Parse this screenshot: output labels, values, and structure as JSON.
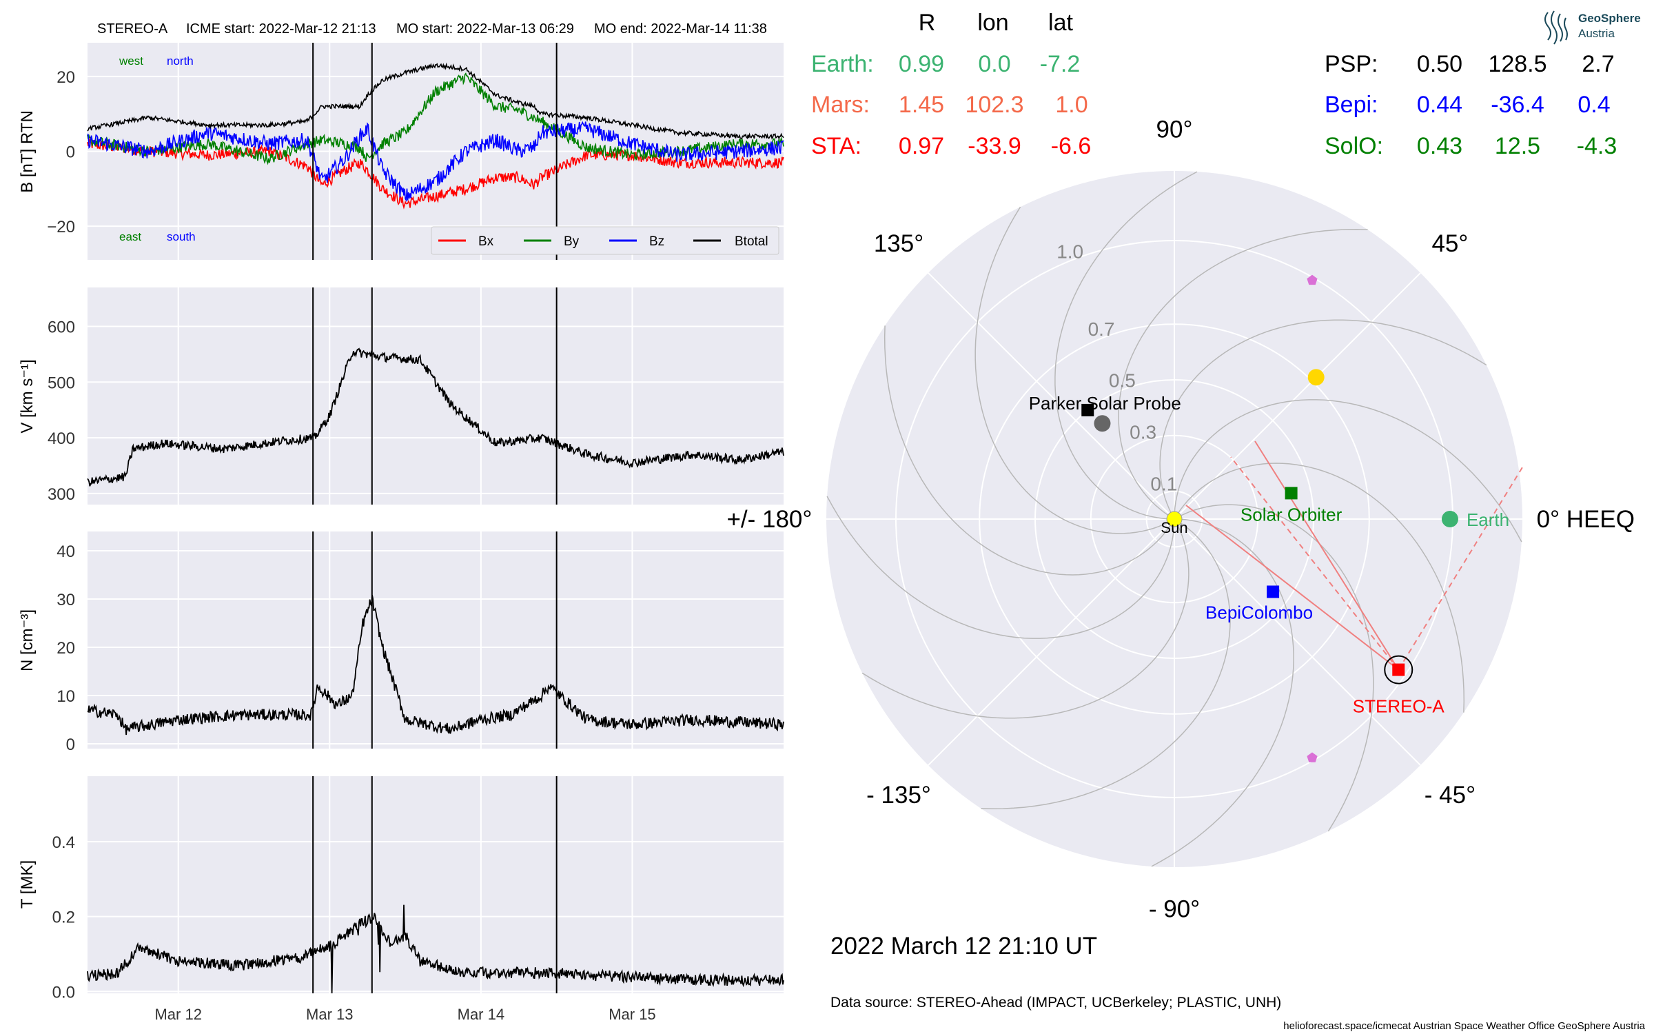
{
  "header": {
    "spacecraft": "STEREO-A",
    "icme_start": "ICME start: 2022-Mar-12 21:13",
    "mo_start": "MO start: 2022-Mar-13 06:29",
    "mo_end": "MO end: 2022-Mar-14 11:38"
  },
  "logo": {
    "line1": "GeoSphere",
    "line2": "Austria"
  },
  "colors": {
    "panel_bg": "#eaeaf2",
    "grid": "#ffffff",
    "bx": "#ff0000",
    "by": "#008000",
    "bz": "#0000ff",
    "btotal": "#000000",
    "earth": "#3cb371",
    "mars": "#f4694a",
    "sta": "#ff0000",
    "psp": "#000000",
    "bepi": "#0000ff",
    "solo": "#008000",
    "sun": "#ffff00",
    "planet_yellow": "#ffd700",
    "pink_marker": "#da70d6"
  },
  "positions_table": {
    "headers": [
      "R",
      "lon",
      "lat"
    ],
    "left": [
      {
        "name": "Earth:",
        "R": "0.99",
        "lon": "0.0",
        "lat": "-7.2",
        "color": "#3cb371"
      },
      {
        "name": "Mars:",
        "R": "1.45",
        "lon": "102.3",
        "lat": "1.0",
        "color": "#f4694a"
      },
      {
        "name": "STA:",
        "R": "0.97",
        "lon": "-33.9",
        "lat": "-6.6",
        "color": "#ff0000"
      }
    ],
    "right": [
      {
        "name": "PSP:",
        "R": "0.50",
        "lon": "128.5",
        "lat": "2.7",
        "color": "#000000"
      },
      {
        "name": "Bepi:",
        "R": "0.44",
        "lon": "-36.4",
        "lat": "0.4",
        "color": "#0000ff"
      },
      {
        "name": "SolO:",
        "R": "0.43",
        "lon": "12.5",
        "lat": "-4.3",
        "color": "#008000"
      }
    ]
  },
  "date_label": "2022 March 12  21:10 UT",
  "data_source": "Data source: STEREO-Ahead (IMPACT, UCBerkeley; PLASTIC, UNH)",
  "footer": "helioforecast.space/icmecat   Austrian Space Weather Office   GeoSphere Austria",
  "chart_data": [
    {
      "type": "line",
      "ylabel": "B [nT] RTN",
      "ylim": [
        -29,
        29
      ],
      "yticks": [
        -20,
        0,
        20
      ],
      "yticklabels": [
        "−20",
        "0",
        "20"
      ],
      "direction_labels": {
        "west": "west",
        "north": "north",
        "east": "east",
        "south": "south"
      },
      "legend": [
        "Bx",
        "By",
        "Bz",
        "Btotal"
      ],
      "legend_position": "lower-right",
      "grid": true,
      "x_days": [
        0,
        0.4,
        0.8,
        1.2,
        1.45,
        1.55,
        1.7,
        1.8,
        1.85,
        1.95,
        2.1,
        2.3,
        2.5,
        2.7,
        2.85,
        2.95,
        3.0,
        3.3,
        3.6,
        3.9,
        4.3,
        4.6
      ],
      "series": [
        {
          "name": "Bx",
          "values": [
            2,
            0,
            -1,
            0,
            -4,
            -9,
            -5,
            -3,
            -5,
            -10,
            -14,
            -12,
            -10,
            -7,
            -7,
            -9,
            -7,
            -1,
            -1,
            -3,
            -3,
            -3
          ]
        },
        {
          "name": "By",
          "values": [
            3,
            0,
            2,
            -2,
            2,
            3,
            2,
            1,
            -2,
            2,
            5,
            16,
            20,
            12,
            11,
            9,
            8,
            1,
            -1,
            0,
            2,
            2
          ]
        },
        {
          "name": "Bz",
          "values": [
            3,
            0,
            5,
            2,
            3,
            -8,
            -2,
            4,
            6,
            -5,
            -12,
            -8,
            0,
            3,
            0,
            1,
            5,
            6,
            2,
            -1,
            0,
            1
          ]
        },
        {
          "name": "Btotal",
          "values": [
            6,
            9,
            7,
            7,
            8,
            12,
            12,
            12,
            15,
            19,
            21,
            23,
            22,
            15,
            13,
            12,
            10,
            9,
            7,
            5,
            4,
            4
          ]
        }
      ]
    },
    {
      "type": "line",
      "ylabel": "V [km s⁻¹]",
      "ylim": [
        280,
        670
      ],
      "yticks": [
        300,
        400,
        500,
        600
      ],
      "grid": true,
      "x_days": [
        0,
        0.25,
        0.3,
        0.5,
        0.9,
        1.3,
        1.5,
        1.6,
        1.75,
        1.95,
        2.2,
        2.4,
        2.7,
        3.0,
        3.3,
        3.6,
        4.0,
        4.3,
        4.6
      ],
      "series": [
        {
          "name": "V",
          "values": [
            320,
            330,
            380,
            390,
            380,
            395,
            400,
            440,
            555,
            545,
            540,
            460,
            390,
            400,
            370,
            355,
            370,
            360,
            375
          ]
        }
      ]
    },
    {
      "type": "line",
      "ylabel": "N [cm⁻³]",
      "ylim": [
        -1,
        44
      ],
      "yticks": [
        0,
        10,
        20,
        30,
        40
      ],
      "grid": true,
      "x_days": [
        0,
        0.2,
        0.25,
        0.6,
        1.0,
        1.48,
        1.52,
        1.65,
        1.75,
        1.82,
        1.88,
        1.95,
        2.0,
        2.1,
        2.4,
        2.6,
        2.8,
        3.0,
        3.05,
        3.3,
        3.6,
        4.0,
        4.6
      ],
      "series": [
        {
          "name": "N",
          "values": [
            7,
            6,
            3,
            5,
            6,
            6,
            12,
            8,
            10,
            25,
            30,
            20,
            15,
            5,
            3,
            5,
            6,
            10,
            12,
            5,
            4,
            5,
            4
          ]
        }
      ]
    },
    {
      "type": "line",
      "ylabel": "T [MK]",
      "ylim": [
        -0.005,
        0.575
      ],
      "yticks": [
        0.0,
        0.2,
        0.4
      ],
      "yticklabels": [
        "0.0",
        "0.2",
        "0.4"
      ],
      "xtick_labels": [
        "Mar 12",
        "Mar 13",
        "Mar 14",
        "Mar 15"
      ],
      "xtick_days": [
        0.6,
        1.6,
        2.6,
        3.6
      ],
      "grid": true,
      "x_days": [
        0,
        0.2,
        0.35,
        0.6,
        1.0,
        1.4,
        1.5,
        1.6,
        1.8,
        1.9,
        2.0,
        2.1,
        2.2,
        2.5,
        3.0,
        3.5,
        4.0,
        4.5,
        4.6
      ],
      "series": [
        {
          "name": "T",
          "values": [
            0.04,
            0.05,
            0.12,
            0.08,
            0.07,
            0.09,
            0.11,
            0.12,
            0.18,
            0.2,
            0.13,
            0.15,
            0.08,
            0.05,
            0.05,
            0.04,
            0.03,
            0.03,
            0.03
          ]
        }
      ]
    },
    {
      "type": "polar",
      "angle_labels": [
        "90°",
        "45°",
        "0° HEEQ",
        "- 45°",
        "- 90°",
        "- 135°",
        "+/- 180°",
        "135°"
      ],
      "radial_ticks": [
        0.1,
        0.3,
        0.5,
        0.7,
        1.0
      ],
      "radial_tick_labels": [
        "0.1",
        "0.3",
        "0.5",
        "0.7",
        "1.0"
      ],
      "grid": true,
      "objects": [
        {
          "name": "Sun",
          "label": "Sun",
          "r": 0.0,
          "lon": 0.0,
          "marker": "circle",
          "color": "#ffff00"
        },
        {
          "name": "Earth",
          "label": "Earth",
          "r": 0.99,
          "lon": 0.0,
          "marker": "circle",
          "color": "#3cb371"
        },
        {
          "name": "STEREO-A",
          "label": "STEREO-A",
          "r": 0.97,
          "lon": -33.9,
          "marker": "square",
          "color": "#ff0000"
        },
        {
          "name": "Parker Solar Probe",
          "label": "Parker Solar Probe",
          "r": 0.5,
          "lon": 128.5,
          "marker": "square",
          "color": "#000000"
        },
        {
          "name": "BepiColombo",
          "label": "BepiColombo",
          "r": 0.44,
          "lon": -36.4,
          "marker": "square",
          "color": "#0000ff"
        },
        {
          "name": "Solar Orbiter",
          "label": "Solar Orbiter",
          "r": 0.43,
          "lon": 12.5,
          "marker": "square",
          "color": "#008000"
        },
        {
          "name": "Venus",
          "label": "",
          "r": 0.72,
          "lon": 45.0,
          "marker": "circle",
          "color": "#ffd700"
        },
        {
          "name": "Mercury",
          "label": "",
          "r": 0.43,
          "lon": 127.0,
          "marker": "circle",
          "color": "#666666"
        },
        {
          "name": "L4",
          "label": "",
          "r": 0.99,
          "lon": 60.0,
          "marker": "pentagon",
          "color": "#da70d6"
        },
        {
          "name": "L5",
          "label": "",
          "r": 0.99,
          "lon": -60.0,
          "marker": "pentagon",
          "color": "#da70d6"
        }
      ]
    }
  ]
}
